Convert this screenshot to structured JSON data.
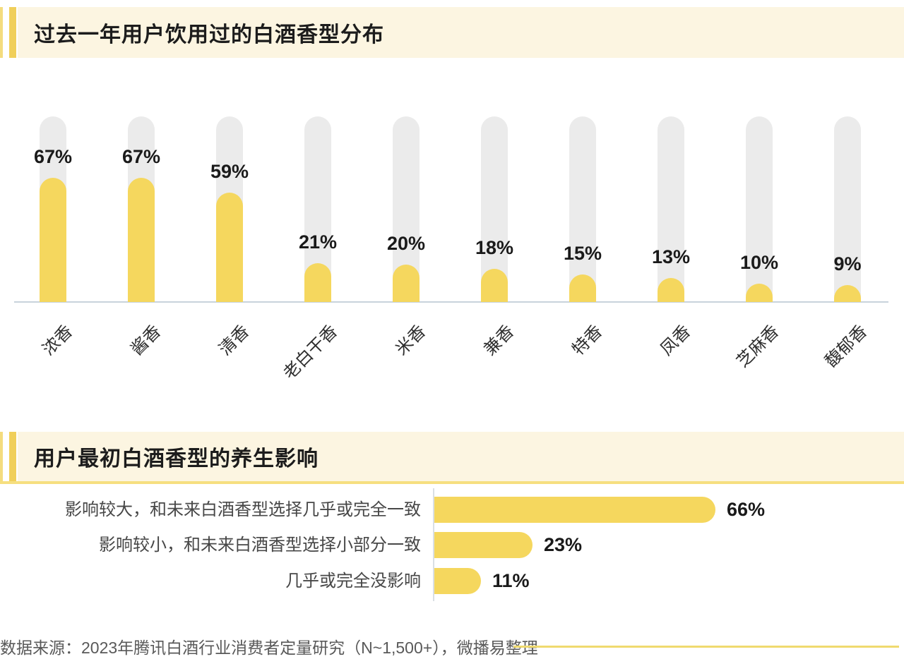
{
  "colors": {
    "bar_yellow": "#F5D75E",
    "track_gray": "#EBEBEB",
    "header_cream": "#FCF5E1",
    "accent_yellow": "#F0CF5A",
    "baseline_gray_blue": "#C8D3DC",
    "footer_line_yellow": "#EFDA6F"
  },
  "chart_data": [
    {
      "type": "bar",
      "orientation": "vertical",
      "title": "过去一年用户饮用过的白酒香型分布",
      "categories": [
        "浓香",
        "酱香",
        "清香",
        "老白干香",
        "米香",
        "兼香",
        "特香",
        "凤香",
        "芝麻香",
        "馥郁香"
      ],
      "values": [
        67,
        67,
        59,
        21,
        20,
        18,
        15,
        13,
        10,
        9
      ],
      "unit": "%",
      "ylim": [
        0,
        100
      ],
      "grid": false,
      "legend": "none",
      "bar_style": "rounded pill fill over full-height gray track, value labels above fill, category labels rotated 45deg"
    },
    {
      "type": "bar",
      "orientation": "horizontal",
      "title": "用户最初白酒香型的养生影响",
      "categories": [
        "影响较大，和未来白酒香型选择几乎或完全一致",
        "影响较小，和未来白酒香型选择小部分一致",
        "几乎或完全没影响"
      ],
      "values": [
        66,
        23,
        11
      ],
      "unit": "%",
      "xlim": [
        0,
        100
      ],
      "grid": false,
      "legend": "none",
      "bar_style": "rounded right cap, value labels right of bars, category labels right-aligned left of axis"
    }
  ],
  "footer": {
    "source_text": "数据来源：2023年腾讯白酒行业消费者定量研究（N~1,500+），微播易整理"
  }
}
